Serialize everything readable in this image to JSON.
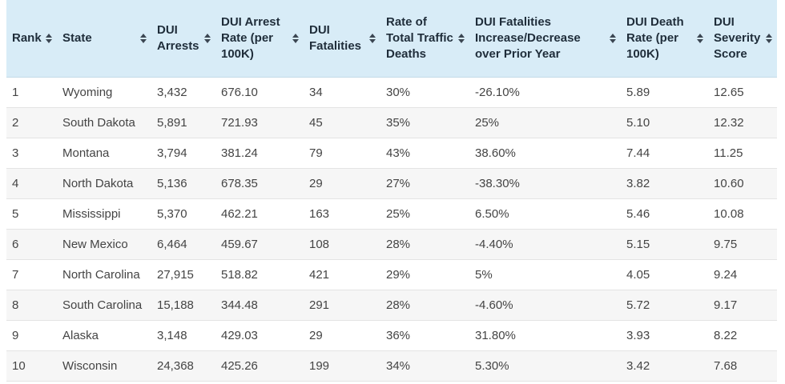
{
  "table": {
    "columns": [
      {
        "key": "rank",
        "label": "Rank"
      },
      {
        "key": "state",
        "label": "State"
      },
      {
        "key": "arrests",
        "label": "DUI Arrests"
      },
      {
        "key": "arrest_rate",
        "label": "DUI Arrest Rate (per 100K)"
      },
      {
        "key": "fatalities",
        "label": "DUI Fatalities"
      },
      {
        "key": "rate_total",
        "label": "Rate of Total Traffic Deaths"
      },
      {
        "key": "change",
        "label": "DUI Fatalities Increase/Decrease over Prior Year"
      },
      {
        "key": "death_rate",
        "label": "DUI Death Rate (per 100K)"
      },
      {
        "key": "severity",
        "label": "DUI Severity Score"
      }
    ],
    "rows": [
      [
        "1",
        "Wyoming",
        "3,432",
        "676.10",
        "34",
        "30%",
        "-26.10%",
        "5.89",
        "12.65"
      ],
      [
        "2",
        "South Dakota",
        "5,891",
        "721.93",
        "45",
        "35%",
        "25%",
        "5.10",
        "12.32"
      ],
      [
        "3",
        "Montana",
        "3,794",
        "381.24",
        "79",
        "43%",
        "38.60%",
        "7.44",
        "11.25"
      ],
      [
        "4",
        "North Dakota",
        "5,136",
        "678.35",
        "29",
        "27%",
        "-38.30%",
        "3.82",
        "10.60"
      ],
      [
        "5",
        "Mississippi",
        "5,370",
        "462.21",
        "163",
        "25%",
        "6.50%",
        "5.46",
        "10.08"
      ],
      [
        "6",
        "New Mexico",
        "6,464",
        "459.67",
        "108",
        "28%",
        "-4.40%",
        "5.15",
        "9.75"
      ],
      [
        "7",
        "North Carolina",
        "27,915",
        "518.82",
        "421",
        "29%",
        "5%",
        "4.05",
        "9.24"
      ],
      [
        "8",
        "South Carolina",
        "15,188",
        "344.48",
        "291",
        "28%",
        "-4.60%",
        "5.72",
        "9.17"
      ],
      [
        "9",
        "Alaska",
        "3,148",
        "429.03",
        "29",
        "36%",
        "31.80%",
        "3.93",
        "8.22"
      ],
      [
        "10",
        "Wisconsin",
        "24,368",
        "425.26",
        "199",
        "34%",
        "5.30%",
        "3.42",
        "7.68"
      ]
    ]
  }
}
